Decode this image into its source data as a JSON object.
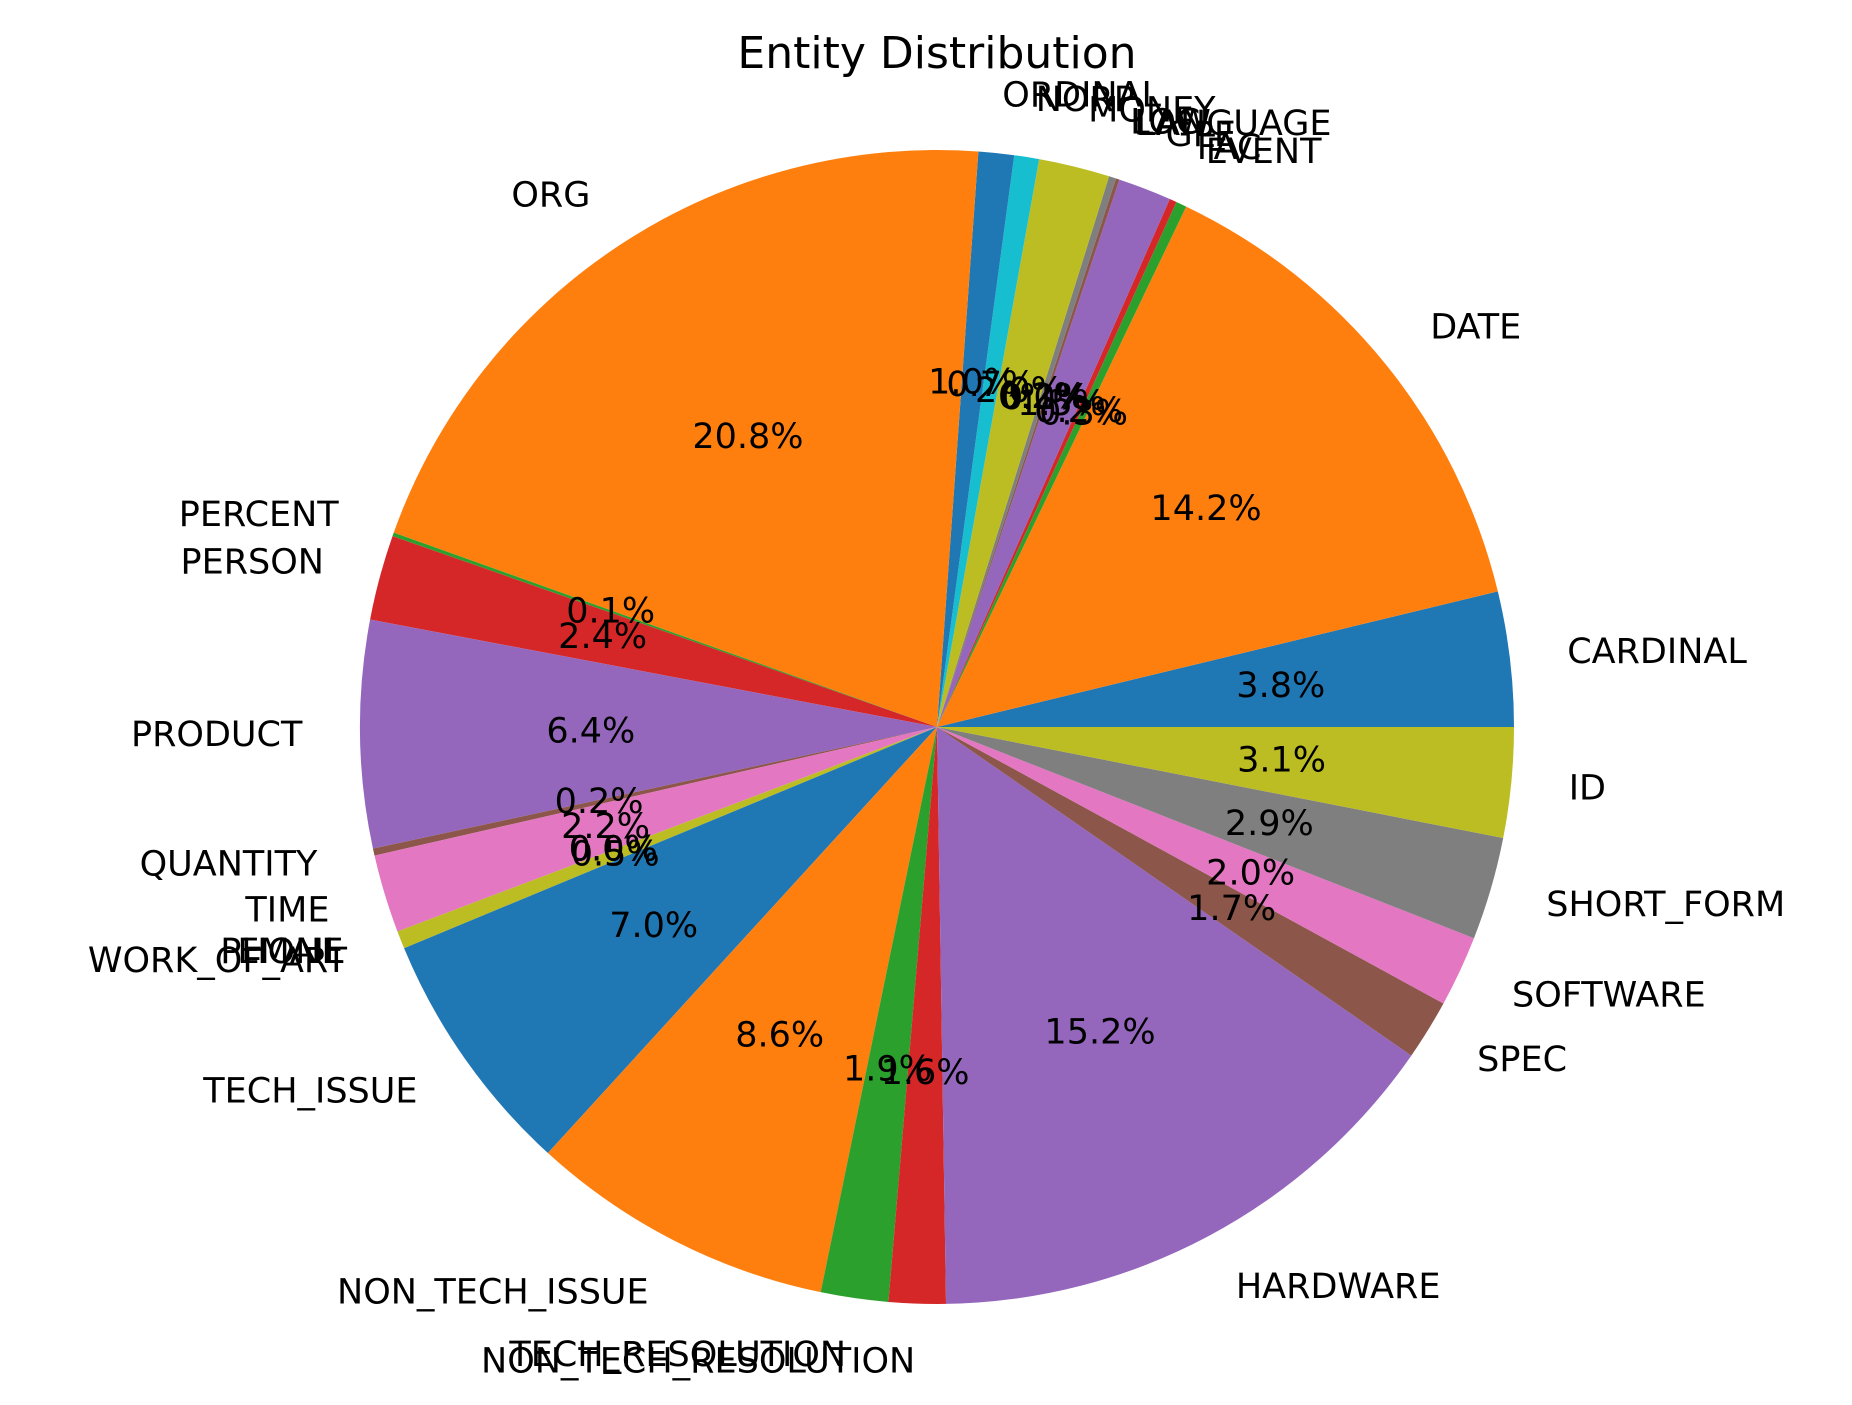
{
  "chart_data": {
    "type": "pie",
    "title": "Entity Distribution",
    "start_angle_deg": 0,
    "direction": "counterclockwise",
    "slices": [
      {
        "label": "CARDINAL",
        "value": 3.8,
        "pct_label": "3.8%",
        "color": "#1f77b4"
      },
      {
        "label": "DATE",
        "value": 14.2,
        "pct_label": "14.2%",
        "color": "#ff7f0e"
      },
      {
        "label": "EVENT",
        "value": 0.3,
        "pct_label": "0.3%",
        "color": "#2ca02c"
      },
      {
        "label": "FAC",
        "value": 0.2,
        "pct_label": "0.2%",
        "color": "#d62728"
      },
      {
        "label": "GPE",
        "value": 1.5,
        "pct_label": "1.5%",
        "color": "#9467bd"
      },
      {
        "label": "LANGUAGE",
        "value": 0.1,
        "pct_label": "0.1%",
        "color": "#8c564b"
      },
      {
        "label": "LAW",
        "value": 0.0,
        "pct_label": "0.0%",
        "color": "#e377c2"
      },
      {
        "label": "LOC",
        "value": 0.2,
        "pct_label": "0.2%",
        "color": "#7f7f7f"
      },
      {
        "label": "MONEY",
        "value": 2.0,
        "pct_label": "2.0%",
        "color": "#bcbd22"
      },
      {
        "label": "NORP",
        "value": 0.7,
        "pct_label": "0.7%",
        "color": "#17becf"
      },
      {
        "label": "ORDINAL",
        "value": 1.0,
        "pct_label": "1.0%",
        "color": "#1f77b4"
      },
      {
        "label": "ORG",
        "value": 20.8,
        "pct_label": "20.8%",
        "color": "#ff7f0e"
      },
      {
        "label": "PERCENT",
        "value": 0.1,
        "pct_label": "0.1%",
        "color": "#2ca02c"
      },
      {
        "label": "PERSON",
        "value": 2.4,
        "pct_label": "2.4%",
        "color": "#d62728"
      },
      {
        "label": "PRODUCT",
        "value": 6.4,
        "pct_label": "6.4%",
        "color": "#9467bd"
      },
      {
        "label": "QUANTITY",
        "value": 0.2,
        "pct_label": "0.2%",
        "color": "#8c564b"
      },
      {
        "label": "TIME",
        "value": 2.2,
        "pct_label": "2.2%",
        "color": "#e377c2"
      },
      {
        "label": "EMAIL",
        "value": 0.0,
        "pct_label": "0.0%",
        "color": "#7f7f7f"
      },
      {
        "label": "PHONE",
        "value": 0.0,
        "pct_label": "0.0%",
        "color": "#bcbd22"
      },
      {
        "label": "WORK_OF_ART",
        "value": 0.5,
        "pct_label": "0.5%",
        "color": "#bcbd22"
      },
      {
        "label": "TECH_ISSUE",
        "value": 7.0,
        "pct_label": "7.0%",
        "color": "#1f77b4"
      },
      {
        "label": "NON_TECH_ISSUE",
        "value": 8.6,
        "pct_label": "8.6%",
        "color": "#ff7f0e"
      },
      {
        "label": "TECH_RESOLUTION",
        "value": 1.9,
        "pct_label": "1.9%",
        "color": "#2ca02c"
      },
      {
        "label": "NON_TECH_RESOLUTION",
        "value": 1.6,
        "pct_label": "1.6%",
        "color": "#d62728"
      },
      {
        "label": "HARDWARE",
        "value": 15.2,
        "pct_label": "15.2%",
        "color": "#9467bd"
      },
      {
        "label": "SPEC",
        "value": 1.7,
        "pct_label": "1.7%",
        "color": "#8c564b"
      },
      {
        "label": "SOFTWARE",
        "value": 2.0,
        "pct_label": "2.0%",
        "color": "#e377c2"
      },
      {
        "label": "SHORT_FORM",
        "value": 2.9,
        "pct_label": "2.9%",
        "color": "#7f7f7f"
      },
      {
        "label": "ID",
        "value": 3.1,
        "pct_label": "3.1%",
        "color": "#bcbd22"
      }
    ]
  }
}
